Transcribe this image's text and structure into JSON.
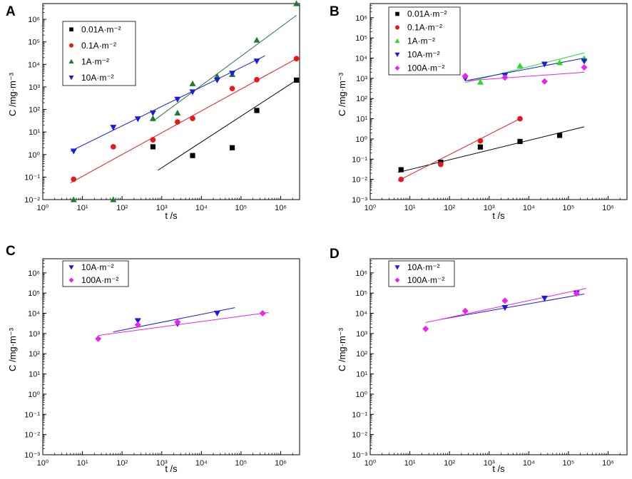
{
  "chart_data": [
    {
      "panel": "A",
      "type": "scatter",
      "xlabel": "t /s",
      "ylabel": "C /mg·m⁻³",
      "xscale": "log",
      "yscale": "log",
      "xlim": [
        1,
        3000000
      ],
      "ylim": [
        0.01,
        5000000
      ],
      "x_ticks": [
        "10⁰",
        "10¹",
        "10²",
        "10³",
        "10⁴",
        "10⁵",
        "10⁶"
      ],
      "y_ticks": [
        "10⁻²",
        "10⁻¹",
        "10⁰",
        "10¹",
        "10²",
        "10³",
        "10⁴",
        "10⁵",
        "10⁶"
      ],
      "legend_position": "top-left",
      "series": [
        {
          "name": "0.01A·m⁻²",
          "marker": "square",
          "color": "#000000",
          "points": [
            [
              600,
              2.2
            ],
            [
              6000,
              0.9
            ],
            [
              60000,
              2.0
            ],
            [
              250000,
              90
            ],
            [
              2500000,
              2000
            ]
          ],
          "fit": [
            [
              800,
              0.2
            ],
            [
              2500000,
              2000
            ]
          ]
        },
        {
          "name": "0.1A·m⁻²",
          "marker": "circle",
          "color": "#e8181a",
          "points": [
            [
              6,
              0.08
            ],
            [
              60,
              2.2
            ],
            [
              600,
              4.5
            ],
            [
              2500,
              28
            ],
            [
              6000,
              40
            ],
            [
              60000,
              850
            ],
            [
              250000,
              2100
            ],
            [
              2500000,
              18000
            ]
          ],
          "fit": [
            [
              5,
              0.055
            ],
            [
              2500000,
              18000
            ]
          ]
        },
        {
          "name": "1A·m⁻²",
          "marker": "triangle-up",
          "color": "#1f7a33",
          "points": [
            [
              6,
              0.01
            ],
            [
              60,
              0.009
            ],
            [
              600,
              40
            ],
            [
              2500,
              70
            ],
            [
              6000,
              1400
            ],
            [
              25000,
              3000
            ],
            [
              60000,
              3600
            ],
            [
              250000,
              120000
            ],
            [
              2500000,
              5000000
            ]
          ],
          "fit": [
            [
              600,
              30
            ],
            [
              2500000,
              1500000
            ]
          ]
        },
        {
          "name": "10A·m⁻²",
          "marker": "triangle-down",
          "color": "#1a1ae0",
          "points": [
            [
              6,
              1.4
            ],
            [
              60,
              16
            ],
            [
              250,
              38
            ],
            [
              600,
              70
            ],
            [
              2500,
              280
            ],
            [
              6000,
              600
            ],
            [
              25000,
              2000
            ],
            [
              60000,
              4000
            ],
            [
              250000,
              14000
            ]
          ],
          "fit": [
            [
              5,
              1.4
            ],
            [
              400000,
              24000
            ]
          ]
        }
      ]
    },
    {
      "panel": "B",
      "type": "scatter",
      "xlabel": "t /s",
      "ylabel": "C /mg·m⁻³",
      "xscale": "log",
      "yscale": "log",
      "xlim": [
        1,
        3000000
      ],
      "ylim": [
        0.001,
        5000000
      ],
      "x_ticks": [
        "10⁰",
        "10¹",
        "10²",
        "10³",
        "10⁴",
        "10⁵",
        "10⁶"
      ],
      "y_ticks": [
        "10⁻³",
        "10⁻²",
        "10⁻¹",
        "10⁰",
        "10¹",
        "10²",
        "10³",
        "10⁴",
        "10⁵",
        "10⁶"
      ],
      "legend_position": "top-left",
      "series": [
        {
          "name": "0.01A·m⁻²",
          "marker": "square",
          "color": "#000000",
          "points": [
            [
              6,
              0.03
            ],
            [
              60,
              0.07
            ],
            [
              600,
              0.4
            ],
            [
              6000,
              0.75
            ],
            [
              60000,
              1.5
            ]
          ],
          "fit": [
            [
              5,
              0.022
            ],
            [
              250000,
              4.0
            ]
          ]
        },
        {
          "name": "0.1A·m⁻²",
          "marker": "circle",
          "color": "#e8181a",
          "points": [
            [
              6,
              0.01
            ],
            [
              60,
              0.055
            ],
            [
              600,
              0.8
            ],
            [
              6000,
              10
            ]
          ],
          "fit": [
            [
              5,
              0.0085
            ],
            [
              6000,
              10
            ]
          ]
        },
        {
          "name": "1A·m⁻²",
          "marker": "triangle-up",
          "color": "#22dd22",
          "points": [
            [
              600,
              650
            ],
            [
              6000,
              4200
            ],
            [
              60000,
              6000
            ],
            [
              250000,
              9500
            ]
          ],
          "fit": [
            [
              250,
              620
            ],
            [
              250000,
              18000
            ]
          ]
        },
        {
          "name": "10A·m⁻²",
          "marker": "triangle-down",
          "color": "#1a1ae0",
          "points": [
            [
              250,
              1000
            ],
            [
              2500,
              1400
            ],
            [
              25000,
              5000
            ],
            [
              250000,
              7000
            ]
          ],
          "fit": [
            [
              250,
              750
            ],
            [
              250000,
              10000
            ]
          ]
        },
        {
          "name": "100A·m⁻²",
          "marker": "diamond",
          "color": "#ee22ee",
          "points": [
            [
              250,
              1300
            ],
            [
              2500,
              1100
            ],
            [
              25000,
              700
            ],
            [
              250000,
              3500
            ]
          ],
          "fit": [
            [
              250,
              750
            ],
            [
              250000,
              2000
            ]
          ]
        }
      ]
    },
    {
      "panel": "C",
      "type": "scatter",
      "xlabel": "t /s",
      "ylabel": "C /mg·m⁻³",
      "xscale": "log",
      "yscale": "log",
      "xlim": [
        1,
        3000000
      ],
      "ylim": [
        0.001,
        5000000
      ],
      "x_ticks": [
        "10⁰",
        "10¹",
        "10²",
        "10³",
        "10⁴",
        "10⁵",
        "10⁶"
      ],
      "y_ticks": [
        "10⁻³",
        "10⁻²",
        "10⁻¹",
        "10⁰",
        "10¹",
        "10²",
        "10³",
        "10⁴",
        "10⁵",
        "10⁶"
      ],
      "legend_position": "top-left",
      "series": [
        {
          "name": "10A·m⁻²",
          "marker": "triangle-down",
          "color": "#1a1ae0",
          "points": [
            [
              250,
              4300
            ],
            [
              2500,
              3000
            ],
            [
              25000,
              10000
            ]
          ],
          "fit": [
            [
              60,
              1200
            ],
            [
              70000,
              19000
            ]
          ]
        },
        {
          "name": "100A·m⁻²",
          "marker": "diamond",
          "color": "#ee22ee",
          "points": [
            [
              25,
              550
            ],
            [
              250,
              2700
            ],
            [
              2500,
              3700
            ],
            [
              350000,
              10000
            ]
          ],
          "fit": [
            [
              25,
              800
            ],
            [
              500000,
              11000
            ]
          ]
        }
      ]
    },
    {
      "panel": "D",
      "type": "scatter",
      "xlabel": "t /s",
      "ylabel": "C /mg·m⁻³",
      "xscale": "log",
      "yscale": "log",
      "xlim": [
        1,
        3000000
      ],
      "ylim": [
        0.001,
        5000000
      ],
      "x_ticks": [
        "10⁰",
        "10¹",
        "10²",
        "10³",
        "10⁴",
        "10⁵",
        "10⁶"
      ],
      "y_ticks": [
        "10⁻³",
        "10⁻²",
        "10⁻¹",
        "10⁰",
        "10¹",
        "10²",
        "10³",
        "10⁴",
        "10⁵",
        "10⁶"
      ],
      "legend_position": "top-left",
      "series": [
        {
          "name": "10A·m⁻²",
          "marker": "triangle-down",
          "color": "#1a1ae0",
          "points": [
            [
              2500,
              19000
            ],
            [
              25000,
              55000
            ],
            [
              160000,
              100000
            ]
          ],
          "fit": [
            [
              60,
              5000
            ],
            [
              250000,
              90000
            ]
          ]
        },
        {
          "name": "100A·m⁻²",
          "marker": "diamond",
          "color": "#ee22ee",
          "points": [
            [
              25,
              1700
            ],
            [
              250,
              13000
            ],
            [
              2500,
              42000
            ],
            [
              160000,
              95000
            ]
          ],
          "fit": [
            [
              25,
              3500
            ],
            [
              280000,
              170000
            ]
          ]
        }
      ]
    }
  ]
}
